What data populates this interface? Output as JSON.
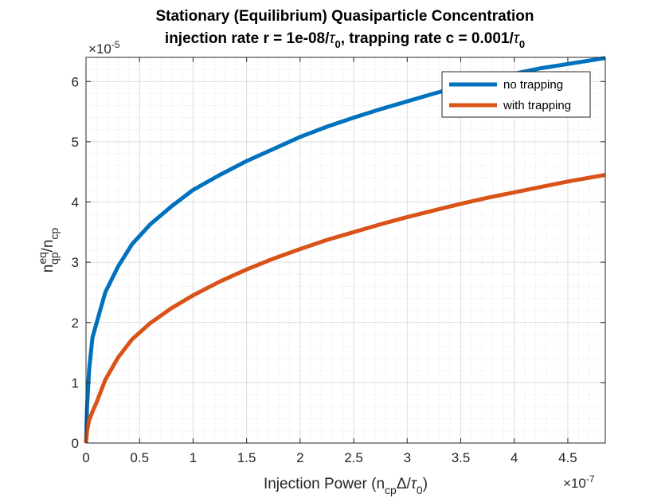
{
  "chart_data": {
    "type": "line",
    "title": {
      "line1": "Stationary (Equilibrium) Quasiparticle Concentration",
      "line2": {
        "p1": "injection rate r = 1e-08/",
        "tau": "τ",
        "sub1": "0",
        "p2": ", trapping rate c = 0.001/",
        "tau2": "τ",
        "sub2": "0"
      }
    },
    "xlabel": {
      "pre": "Injection Power (n",
      "sub": "cp",
      "mid": "Δ/",
      "tau": "τ",
      "sub2": "0",
      "post": ")"
    },
    "ylabel": {
      "n": "n",
      "sup": "eq",
      "sub": "qp",
      "slash": "/n",
      "sub2": "cp"
    },
    "x_exponent": {
      "base": "×10",
      "power": "-7"
    },
    "y_exponent": {
      "base": "×10",
      "power": "-5"
    },
    "xlim": [
      0,
      4.85
    ],
    "ylim": [
      0,
      6.4
    ],
    "xticks": [
      0,
      0.5,
      1,
      1.5,
      2,
      2.5,
      3,
      3.5,
      4,
      4.5
    ],
    "xtick_labels": [
      "0",
      "0.5",
      "1",
      "1.5",
      "2",
      "2.5",
      "3",
      "3.5",
      "4",
      "4.5"
    ],
    "yticks": [
      0,
      1,
      2,
      3,
      4,
      5,
      6
    ],
    "ytick_labels": [
      "0",
      "1",
      "2",
      "3",
      "4",
      "5",
      "6"
    ],
    "grid": true,
    "minor_grid": true,
    "legend_position": "top-right",
    "series": [
      {
        "name": "no trapping",
        "color": "#0072BD",
        "x": [
          0,
          0.01,
          0.03,
          0.06,
          0.1,
          0.18,
          0.3,
          0.43,
          0.6,
          0.8,
          1.0,
          1.25,
          1.5,
          1.75,
          2.0,
          2.25,
          2.5,
          2.75,
          3.0,
          3.25,
          3.5,
          3.75,
          4.0,
          4.25,
          4.5,
          4.85
        ],
        "y": [
          0,
          0.6,
          1.23,
          1.75,
          2.0,
          2.5,
          2.93,
          3.3,
          3.63,
          3.93,
          4.2,
          4.45,
          4.68,
          4.88,
          5.08,
          5.25,
          5.4,
          5.54,
          5.67,
          5.8,
          5.92,
          6.04,
          6.13,
          6.22,
          6.29,
          6.39
        ]
      },
      {
        "name": "with trapping",
        "color": "#D95319",
        "x": [
          0,
          0.01,
          0.03,
          0.06,
          0.1,
          0.18,
          0.3,
          0.43,
          0.6,
          0.8,
          1.0,
          1.25,
          1.5,
          1.75,
          2.0,
          2.25,
          2.5,
          2.75,
          3.0,
          3.25,
          3.5,
          3.75,
          4.0,
          4.25,
          4.5,
          4.85
        ],
        "y": [
          0,
          0.2,
          0.38,
          0.52,
          0.68,
          1.05,
          1.42,
          1.72,
          1.99,
          2.24,
          2.45,
          2.68,
          2.88,
          3.06,
          3.22,
          3.37,
          3.5,
          3.63,
          3.75,
          3.86,
          3.97,
          4.07,
          4.16,
          4.25,
          4.34,
          4.45
        ]
      }
    ]
  }
}
